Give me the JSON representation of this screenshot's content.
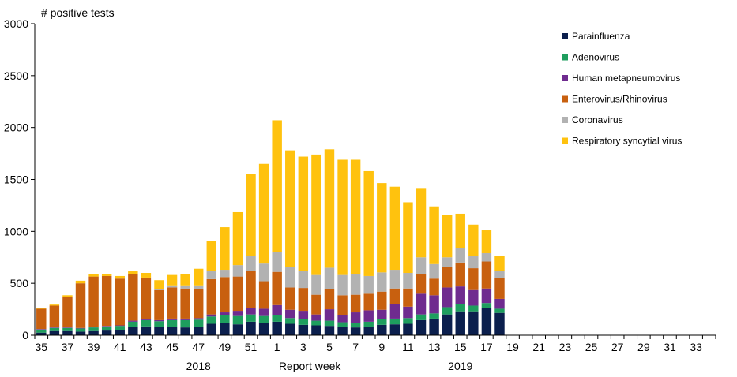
{
  "chart_data": {
    "type": "bar",
    "stacked": true,
    "title": "",
    "ylabel": "# positive tests",
    "xlabel": "Report  week",
    "year_labels": [
      {
        "label": "2018",
        "week": "47"
      },
      {
        "label": "2019",
        "week": "15"
      }
    ],
    "ylim": [
      0,
      3000
    ],
    "yticks": [
      0,
      500,
      1000,
      1500,
      2000,
      2500,
      3000
    ],
    "grid": false,
    "legend_position": "top-right",
    "categories": [
      "35",
      "36",
      "37",
      "38",
      "39",
      "40",
      "41",
      "42",
      "43",
      "44",
      "45",
      "46",
      "47",
      "48",
      "49",
      "50",
      "51",
      "52",
      "1",
      "2",
      "3",
      "4",
      "5",
      "6",
      "7",
      "8",
      "9",
      "10",
      "11",
      "12",
      "13",
      "14",
      "15",
      "16",
      "17",
      "18",
      "19",
      "20",
      "21",
      "22",
      "23",
      "24",
      "25",
      "26",
      "27",
      "28",
      "29",
      "30",
      "31",
      "32",
      "33",
      "34"
    ],
    "xtick_labels": [
      "35",
      "37",
      "39",
      "41",
      "43",
      "45",
      "47",
      "49",
      "51",
      "1",
      "3",
      "5",
      "7",
      "9",
      "11",
      "13",
      "15",
      "17",
      "19",
      "21",
      "23",
      "25",
      "27",
      "29",
      "31",
      "33"
    ],
    "series": [
      {
        "name": "Parainfluenza",
        "color": "#0b1f4d",
        "values": [
          25,
          40,
          40,
          35,
          40,
          45,
          50,
          80,
          85,
          80,
          80,
          75,
          80,
          110,
          120,
          105,
          130,
          115,
          130,
          110,
          100,
          95,
          90,
          80,
          75,
          80,
          100,
          105,
          110,
          145,
          160,
          200,
          230,
          230,
          260,
          215,
          null,
          null,
          null,
          null,
          null,
          null,
          null,
          null,
          null,
          null,
          null,
          null,
          null,
          null,
          null,
          null
        ]
      },
      {
        "name": "Adenovirus",
        "color": "#1e9e5e",
        "values": [
          30,
          30,
          30,
          30,
          35,
          40,
          40,
          50,
          60,
          55,
          65,
          70,
          70,
          70,
          70,
          80,
          70,
          70,
          60,
          55,
          55,
          45,
          50,
          45,
          45,
          50,
          55,
          55,
          55,
          55,
          50,
          70,
          70,
          55,
          50,
          40,
          null,
          null,
          null,
          null,
          null,
          null,
          null,
          null,
          null,
          null,
          null,
          null,
          null,
          null,
          null,
          null
        ]
      },
      {
        "name": "Human metapneumovirus",
        "color": "#6f2b8f",
        "values": [
          5,
          5,
          5,
          5,
          5,
          5,
          5,
          10,
          10,
          10,
          15,
          15,
          15,
          20,
          30,
          50,
          60,
          70,
          100,
          80,
          80,
          60,
          110,
          70,
          100,
          110,
          90,
          140,
          110,
          200,
          175,
          190,
          170,
          150,
          140,
          95,
          null,
          null,
          null,
          null,
          null,
          null,
          null,
          null,
          null,
          null,
          null,
          null,
          null,
          null,
          null,
          null
        ]
      },
      {
        "name": "Enterovirus/Rhinovirus",
        "color": "#c8600f",
        "values": [
          195,
          210,
          295,
          430,
          485,
          480,
          450,
          450,
          400,
          290,
          300,
          290,
          280,
          340,
          340,
          330,
          360,
          265,
          320,
          215,
          220,
          190,
          195,
          190,
          170,
          160,
          175,
          150,
          175,
          190,
          160,
          200,
          230,
          210,
          260,
          200,
          null,
          null,
          null,
          null,
          null,
          null,
          null,
          null,
          null,
          null,
          null,
          null,
          null,
          null,
          null,
          null
        ]
      },
      {
        "name": "Coronavirus",
        "color": "#b2b2b2",
        "values": [
          0,
          0,
          0,
          0,
          0,
          0,
          0,
          0,
          0,
          10,
          20,
          30,
          35,
          80,
          70,
          110,
          140,
          170,
          190,
          200,
          165,
          190,
          205,
          195,
          200,
          170,
          185,
          180,
          150,
          160,
          140,
          90,
          140,
          120,
          80,
          70,
          null,
          null,
          null,
          null,
          null,
          null,
          null,
          null,
          null,
          null,
          null,
          null,
          null,
          null,
          null,
          null
        ]
      },
      {
        "name": "Respiratory syncytial virus",
        "color": "#ffc20e",
        "values": [
          5,
          10,
          15,
          25,
          25,
          20,
          25,
          25,
          45,
          85,
          100,
          110,
          160,
          290,
          410,
          510,
          790,
          960,
          1270,
          1120,
          1100,
          1160,
          1140,
          1110,
          1100,
          1010,
          860,
          800,
          680,
          660,
          555,
          410,
          330,
          300,
          220,
          140,
          null,
          null,
          null,
          null,
          null,
          null,
          null,
          null,
          null,
          null,
          null,
          null,
          null,
          null,
          null,
          null
        ]
      }
    ]
  }
}
